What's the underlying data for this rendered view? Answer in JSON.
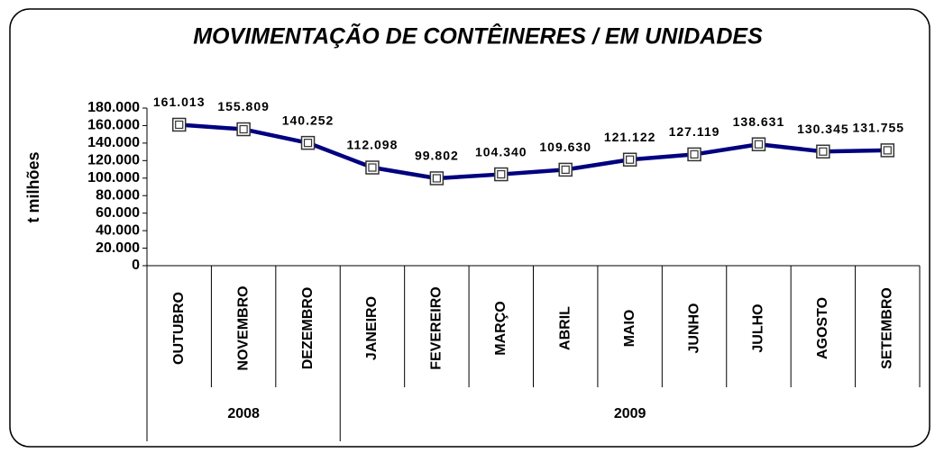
{
  "chart_data": {
    "type": "line",
    "title": "MOVIMENTAÇÃO DE CONTÊINERES / EM UNIDADES",
    "y_label": "t milhões",
    "categories": [
      "OUTUBRO",
      "NOVEMBRO",
      "DEZEMBRO",
      "JANEIRO",
      "FEVEREIRO",
      "MARÇO",
      "ABRIL",
      "MAIO",
      "JUNHO",
      "JULHO",
      "AGOSTO",
      "SETEMBRO"
    ],
    "x_groups": [
      {
        "label": "2008",
        "count": 3
      },
      {
        "label": "2009",
        "count": 9
      }
    ],
    "values": [
      161013,
      155809,
      140252,
      112098,
      99802,
      104340,
      109630,
      121122,
      127119,
      138631,
      130345,
      131755
    ],
    "value_labels": [
      "161.013",
      "155.809",
      "140.252",
      "112.098",
      "99.802",
      "104.340",
      "109.630",
      "121.122",
      "127.119",
      "138.631",
      "130.345",
      "131.755"
    ],
    "color": "#000080",
    "ylim": [
      0,
      180000
    ],
    "yticks": [
      0,
      {
        "value": 20000,
        "label": "20.000"
      },
      {
        "value": 40000,
        "label": "40.000"
      },
      {
        "value": 60000,
        "label": "60.000"
      },
      {
        "value": 80000,
        "label": "80.000"
      },
      {
        "value": 100000,
        "label": "100.000"
      },
      {
        "value": 120000,
        "label": "120.000"
      },
      {
        "value": 140000,
        "label": "140.000"
      },
      {
        "value": 160000,
        "label": "160.000"
      },
      {
        "value": 180000,
        "label": "180.000"
      }
    ]
  }
}
